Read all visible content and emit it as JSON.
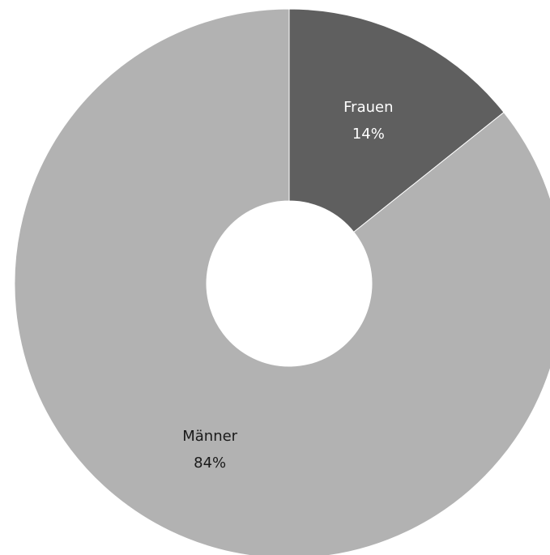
{
  "chart_data": {
    "type": "pie",
    "donut": true,
    "title": "",
    "slices": [
      {
        "label": "Frauen",
        "value": 14,
        "display": "14%",
        "color": "#5f5f5f",
        "text_color": "#ffffff"
      },
      {
        "label": "Männer",
        "value": 84,
        "display": "84%",
        "color": "#b2b2b2",
        "text_color": "#1a1a1a"
      }
    ],
    "start_angle": "12 o'clock",
    "direction": "clockwise",
    "legend": "none"
  }
}
